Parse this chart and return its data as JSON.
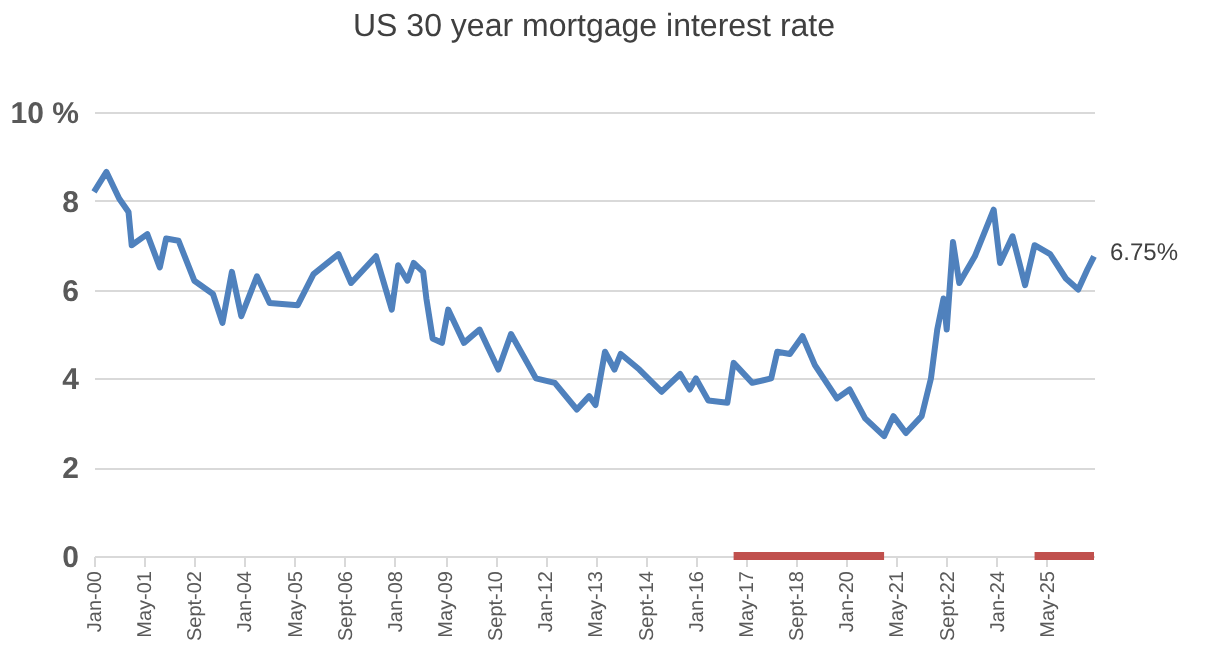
{
  "chart_data": {
    "type": "line",
    "title": "US 30 year mortgage interest rate",
    "x": [
      "2000-01",
      "2000-05",
      "2000-09",
      "2000-12",
      "2001-01",
      "2001-06",
      "2001-10",
      "2001-12",
      "2002-04",
      "2002-09",
      "2003-03",
      "2003-06",
      "2003-09",
      "2003-12",
      "2004-05",
      "2004-09",
      "2005-06",
      "2005-11",
      "2006-07",
      "2006-11",
      "2007-07",
      "2007-12",
      "2008-02",
      "2008-05",
      "2008-07",
      "2008-10",
      "2008-11",
      "2009-01",
      "2009-04",
      "2009-06",
      "2009-11",
      "2010-04",
      "2010-10",
      "2011-02",
      "2011-10",
      "2012-04",
      "2012-11",
      "2013-03",
      "2013-05",
      "2013-08",
      "2013-11",
      "2014-01",
      "2014-07",
      "2015-02",
      "2015-08",
      "2015-11",
      "2016-01",
      "2016-05",
      "2016-11",
      "2017-01",
      "2017-07",
      "2018-01",
      "2018-03",
      "2018-07",
      "2018-11",
      "2019-03",
      "2019-10",
      "2020-02",
      "2020-07",
      "2021-01",
      "2021-04",
      "2021-08",
      "2022-01",
      "2022-04",
      "2022-06",
      "2022-08",
      "2022-09",
      "2022-11",
      "2023-01",
      "2023-06",
      "2023-12",
      "2024-02",
      "2024-06",
      "2024-10",
      "2025-01",
      "2025-06",
      "2025-11",
      "2026-03",
      "2026-06",
      "2026-08"
    ],
    "series": [
      {
        "color": "#4f81bd",
        "values": [
          8.2,
          8.65,
          8.05,
          7.75,
          7.0,
          7.25,
          6.5,
          7.15,
          7.1,
          6.2,
          5.9,
          5.25,
          6.4,
          5.4,
          6.3,
          5.7,
          5.65,
          6.35,
          6.8,
          6.15,
          6.75,
          5.55,
          6.55,
          6.2,
          6.6,
          6.4,
          5.8,
          4.9,
          4.8,
          5.55,
          4.8,
          5.1,
          4.2,
          5.0,
          4.0,
          3.9,
          3.3,
          3.6,
          3.4,
          4.6,
          4.2,
          4.55,
          4.2,
          3.7,
          4.1,
          3.75,
          4.0,
          3.5,
          3.45,
          4.35,
          3.9,
          4.0,
          4.6,
          4.55,
          4.95,
          4.3,
          3.55,
          3.75,
          3.1,
          2.7,
          3.15,
          2.77,
          3.15,
          4.0,
          5.1,
          5.8,
          5.1,
          7.07,
          6.15,
          6.75,
          7.8,
          6.6,
          7.2,
          6.1,
          7.0,
          6.8,
          6.25,
          6.0,
          6.47,
          6.75
        ]
      },
      {
        "color": "#c0504d",
        "x": [
          "2017-01",
          "2021-01",
          "2021-02",
          "2025-01",
          "2026-08"
        ],
        "values": [
          0,
          0,
          null,
          0,
          0
        ]
      }
    ],
    "xlim": [
      "2000-01",
      "2026-08"
    ],
    "xticks": [
      {
        "value": "2000-01",
        "label": "Jan-00"
      },
      {
        "value": "2001-05",
        "label": "May-01"
      },
      {
        "value": "2002-09",
        "label": "Sept-02"
      },
      {
        "value": "2004-01",
        "label": "Jan-04"
      },
      {
        "value": "2005-05",
        "label": "May-05"
      },
      {
        "value": "2006-09",
        "label": "Sept-06"
      },
      {
        "value": "2008-01",
        "label": "Jan-08"
      },
      {
        "value": "2009-05",
        "label": "May-09"
      },
      {
        "value": "2010-09",
        "label": "Sept-10"
      },
      {
        "value": "2012-01",
        "label": "Jan-12"
      },
      {
        "value": "2013-05",
        "label": "May-13"
      },
      {
        "value": "2014-09",
        "label": "Sept-14"
      },
      {
        "value": "2016-01",
        "label": "Jan-16"
      },
      {
        "value": "2017-05",
        "label": "May-17"
      },
      {
        "value": "2018-09",
        "label": "Sept-18"
      },
      {
        "value": "2020-01",
        "label": "Jan-20"
      },
      {
        "value": "2021-05",
        "label": "May-21"
      },
      {
        "value": "2022-09",
        "label": "Sept-22"
      },
      {
        "value": "2024-01",
        "label": "Jan-24"
      },
      {
        "value": "2025-05",
        "label": "May-25"
      }
    ],
    "ylim": [
      0,
      10
    ],
    "yticks": [
      0,
      2,
      4,
      6,
      8,
      {
        "value": 10,
        "label": "10 %"
      }
    ],
    "grid": "y",
    "annotations": [
      {
        "text": "6.75%",
        "x": "2026-08",
        "y": 6.75
      }
    ]
  }
}
